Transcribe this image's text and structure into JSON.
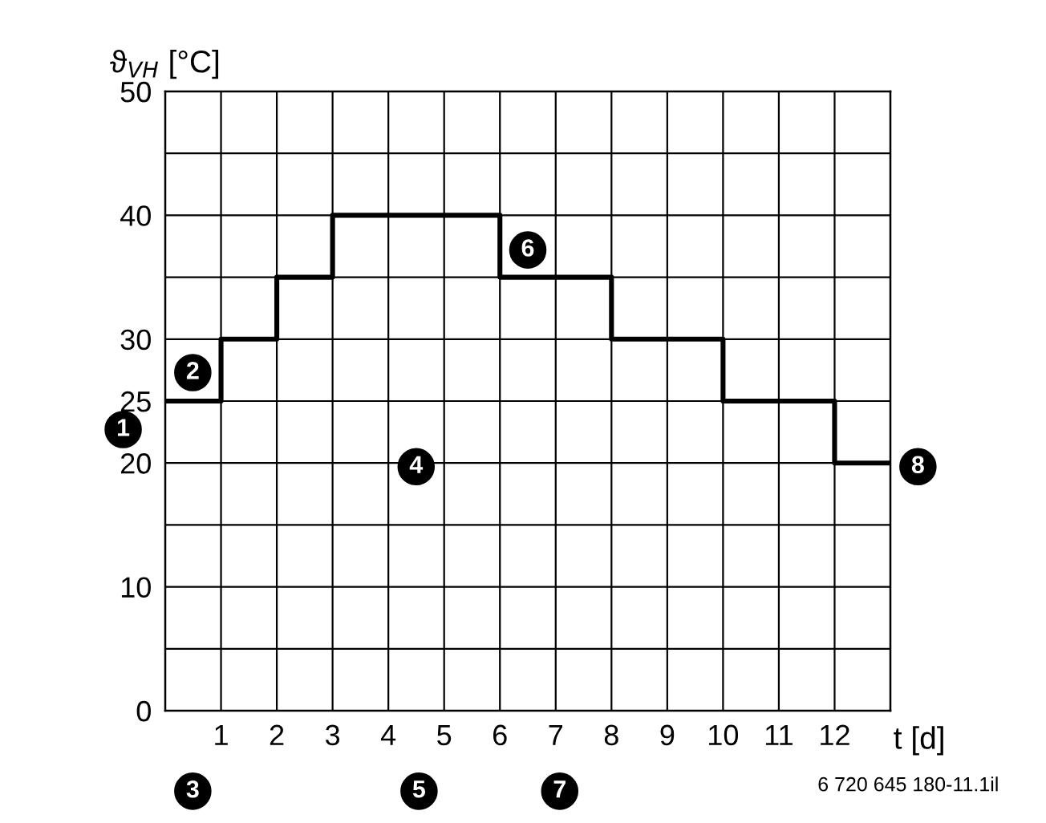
{
  "chart_data": {
    "type": "step",
    "ylabel": "ϑ$_{VH}$ [°C]",
    "xlabel": "t [d]",
    "x": [
      0,
      1,
      2,
      3,
      6,
      8,
      10,
      12,
      13
    ],
    "series": [
      {
        "color": "#000000",
        "values": [
          25,
          30,
          35,
          40,
          35,
          30,
          25,
          20,
          20
        ]
      }
    ],
    "xlim": [
      0,
      13
    ],
    "ylim": [
      0,
      50
    ],
    "xticks": [
      1,
      2,
      3,
      4,
      5,
      6,
      7,
      8,
      9,
      10,
      11,
      12
    ],
    "yticks": [
      0,
      {
        "value": 5,
        "label": null
      },
      10,
      {
        "value": 15,
        "label": null
      },
      20,
      25,
      30,
      {
        "value": 35,
        "label": null
      },
      40,
      {
        "value": 45,
        "label": null
      },
      50
    ],
    "grid": true,
    "annotations": [
      "1",
      "2",
      "3",
      "4",
      "5",
      "6",
      "7",
      "8",
      "6 720 645 180-11.1il"
    ]
  }
}
